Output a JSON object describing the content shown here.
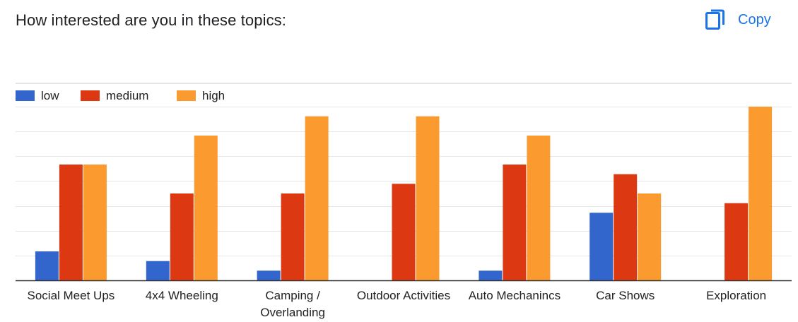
{
  "question": {
    "title": "How interested are you in these topics:"
  },
  "toolbar": {
    "copy_label": "Copy",
    "copy_icon": "copy-icon"
  },
  "colors": {
    "low": "#3366cc",
    "medium": "#dc3912",
    "high": "#ff9900",
    "accent": "#1a73e8"
  },
  "chart_data": {
    "type": "bar",
    "title": "",
    "xlabel": "",
    "ylabel": "",
    "ylim": [
      0,
      18
    ],
    "grid": true,
    "legend_position": "top-left",
    "categories": [
      [
        "Social Meet Ups"
      ],
      [
        "4x4 Wheeling"
      ],
      [
        "Camping /",
        "Overlanding"
      ],
      [
        "Outdoor Activities"
      ],
      [
        "Auto Mechanincs"
      ],
      [
        "Car Shows"
      ],
      [
        "Exploration"
      ]
    ],
    "series": [
      {
        "name": "low",
        "color": "#3366cc",
        "values": [
          3,
          2,
          1,
          0,
          1,
          7,
          0
        ]
      },
      {
        "name": "medium",
        "color": "#dc3912",
        "values": [
          12,
          9,
          9,
          10,
          12,
          11,
          8
        ]
      },
      {
        "name": "high",
        "color": "#fb9a2e",
        "values": [
          12,
          15,
          17,
          17,
          15,
          9,
          18
        ]
      }
    ]
  }
}
